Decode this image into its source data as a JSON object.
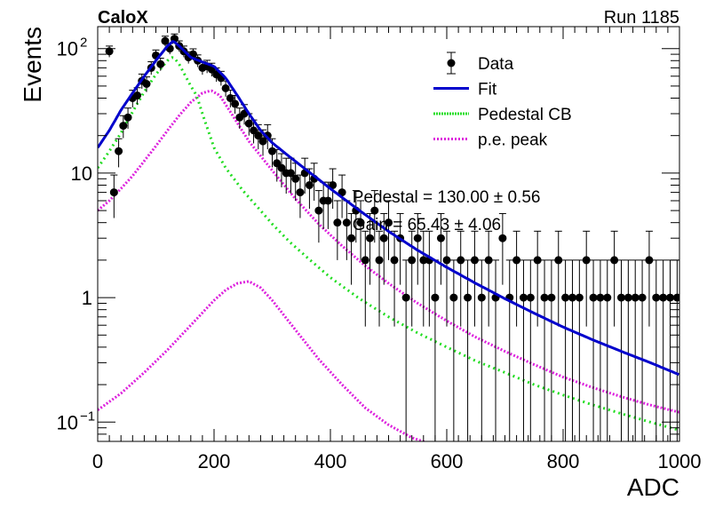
{
  "header": {
    "experiment_label": "CaloX",
    "run_label": "Run 1185"
  },
  "chart_data": {
    "type": "scatter",
    "xlabel": "ADC",
    "ylabel": "Events",
    "xlim": [
      0,
      1000
    ],
    "ylim": [
      0.07,
      150
    ],
    "y_scale": "log",
    "x_ticks": [
      0,
      200,
      400,
      600,
      800,
      1000
    ],
    "x_tick_labels": [
      "0",
      "200",
      "400",
      "600",
      "800",
      "1000"
    ],
    "y_tick_labels": [
      {
        "value": 100,
        "base": "10",
        "exp": "2"
      },
      {
        "value": 10,
        "base": "10",
        "exp": ""
      },
      {
        "value": 1,
        "base": "1",
        "exp": ""
      },
      {
        "value": 0.1,
        "base": "10",
        "exp": "−1"
      }
    ],
    "grid": false,
    "legend_position": "top-right",
    "legend": [
      {
        "label": "Data",
        "style": "marker",
        "color": "#000000"
      },
      {
        "label": "Fit",
        "style": "solid",
        "color": "#0000cc"
      },
      {
        "label": "Pedestal CB",
        "style": "dotted",
        "color": "#22dd22"
      },
      {
        "label": "p.e. peak",
        "style": "dotted",
        "color": "#dd22dd"
      }
    ],
    "annotations": [
      {
        "label": "Pedestal = 130.00 ± 0.56",
        "x": 560,
        "y": 6.5
      },
      {
        "label": "Gain = 65.43 ± 4.06",
        "x": 560,
        "y": 3.9
      }
    ],
    "data": {
      "name": "Data",
      "color": "#000000",
      "x": [
        20,
        28,
        36,
        44,
        52,
        60,
        68,
        76,
        84,
        92,
        100,
        108,
        116,
        124,
        132,
        140,
        148,
        156,
        164,
        172,
        180,
        188,
        196,
        204,
        212,
        220,
        228,
        236,
        244,
        252,
        260,
        268,
        276,
        284,
        292,
        300,
        308,
        316,
        324,
        332,
        340,
        348,
        356,
        364,
        372,
        380,
        388,
        396,
        404,
        412,
        420,
        428,
        436,
        444,
        452,
        460,
        468,
        476,
        484,
        492,
        500,
        510,
        520,
        530,
        540,
        550,
        560,
        570,
        580,
        590,
        600,
        612,
        624,
        636,
        648,
        660,
        672,
        684,
        696,
        708,
        720,
        732,
        744,
        756,
        768,
        780,
        792,
        804,
        816,
        828,
        840,
        852,
        864,
        876,
        888,
        900,
        912,
        924,
        936,
        948,
        960,
        972,
        984,
        996
      ],
      "y": [
        95,
        7,
        15,
        24,
        28,
        40,
        42,
        55,
        52,
        70,
        88,
        75,
        115,
        100,
        120,
        105,
        95,
        85,
        90,
        80,
        70,
        72,
        68,
        62,
        58,
        48,
        40,
        36,
        28,
        30,
        25,
        22,
        20,
        18,
        20,
        15,
        12,
        11,
        10,
        10,
        9,
        7,
        10,
        8,
        9,
        5,
        6,
        6,
        8,
        4,
        7,
        4,
        3,
        5,
        4,
        2,
        3,
        5,
        2,
        3,
        4,
        2,
        3,
        1,
        2,
        3,
        2,
        2,
        1,
        3,
        2,
        1,
        2,
        1,
        2,
        1,
        2,
        1,
        3,
        1,
        2,
        1,
        1,
        2,
        1,
        1,
        2,
        1,
        1,
        1,
        2,
        1,
        1,
        1,
        2,
        1,
        1,
        1,
        1,
        2,
        1,
        1,
        1,
        1
      ]
    },
    "fit": {
      "name": "Fit",
      "color": "#0000cc",
      "x": [
        0,
        20,
        40,
        60,
        80,
        100,
        120,
        130,
        140,
        160,
        180,
        200,
        220,
        240,
        260,
        280,
        300,
        330,
        360,
        400,
        450,
        500,
        550,
        600,
        650,
        700,
        750,
        800,
        850,
        900,
        950,
        1000
      ],
      "y": [
        16,
        22,
        32,
        44,
        60,
        80,
        105,
        115,
        105,
        85,
        78,
        72,
        58,
        42,
        30,
        22,
        17.5,
        13.5,
        10.5,
        7.5,
        5,
        3.4,
        2.4,
        1.75,
        1.3,
        0.98,
        0.75,
        0.58,
        0.46,
        0.37,
        0.3,
        0.24
      ]
    },
    "pedestal_cb": {
      "name": "Pedestal CB",
      "color": "#22dd22",
      "x": [
        0,
        20,
        40,
        60,
        80,
        100,
        120,
        130,
        140,
        160,
        170,
        180,
        200,
        220,
        250,
        280,
        300,
        330,
        360,
        400,
        450,
        500,
        550,
        600,
        650,
        700,
        750,
        800,
        850,
        900,
        950,
        1000
      ],
      "y": [
        11,
        15,
        21,
        31,
        45,
        62,
        80,
        86,
        75,
        50,
        42,
        30,
        16,
        11,
        7.2,
        5,
        3.9,
        2.8,
        2.1,
        1.45,
        0.98,
        0.7,
        0.52,
        0.4,
        0.31,
        0.25,
        0.2,
        0.165,
        0.138,
        0.117,
        0.1,
        0.086
      ]
    },
    "pe_peak_1": {
      "name": "p.e. peak",
      "color": "#dd22dd",
      "x": [
        0,
        20,
        40,
        60,
        80,
        100,
        120,
        140,
        160,
        180,
        195,
        210,
        230,
        260,
        300,
        340,
        380,
        420,
        460,
        500,
        550,
        600,
        650,
        700,
        750,
        800,
        850,
        900,
        950,
        1000
      ],
      "y": [
        5,
        6,
        7.5,
        9.5,
        12.5,
        16.5,
        22,
        29,
        37,
        44,
        46,
        42,
        30,
        18,
        10.5,
        6.2,
        3.9,
        2.6,
        1.8,
        1.3,
        0.9,
        0.65,
        0.48,
        0.37,
        0.29,
        0.23,
        0.19,
        0.16,
        0.137,
        0.12
      ]
    },
    "pe_peak_2": {
      "color": "#dd22dd",
      "x": [
        0,
        40,
        80,
        120,
        160,
        200,
        220,
        240,
        260,
        280,
        300,
        340,
        380,
        420,
        460,
        500,
        540,
        580
      ],
      "y": [
        0.125,
        0.17,
        0.25,
        0.38,
        0.6,
        0.95,
        1.15,
        1.3,
        1.35,
        1.2,
        0.95,
        0.55,
        0.32,
        0.2,
        0.13,
        0.095,
        0.075,
        0.065
      ]
    }
  }
}
